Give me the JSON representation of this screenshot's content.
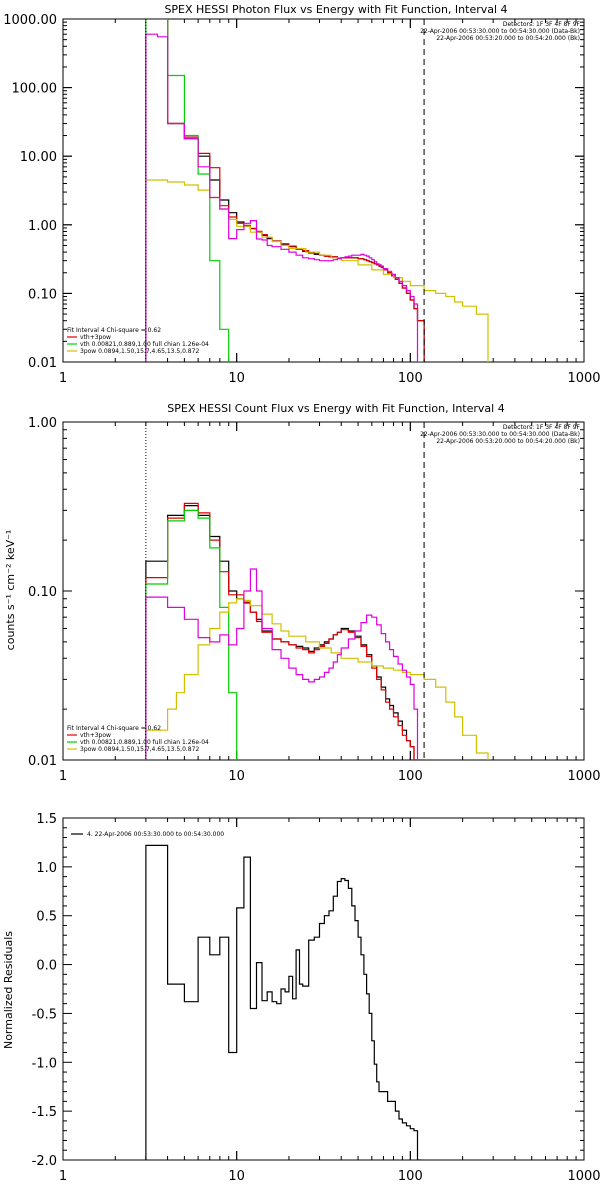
{
  "chart_data": [
    {
      "type": "line",
      "title": "SPEX HESSI Photon Flux vs Energy with Fit Function, Interval 4",
      "ylabel": "",
      "xscale": "log",
      "yscale": "log",
      "xlim": [
        1,
        1000
      ],
      "ylim": [
        0.01,
        1000
      ],
      "x_ticks": [
        "1",
        "10",
        "100",
        "1000"
      ],
      "y_ticks": [
        "0.01",
        "0.10",
        "1.00",
        "10.00",
        "100.00",
        "1000.00"
      ],
      "info_lines": [
        "Detectors: 1F 3F 4F 8F 9F",
        "22-Apr-2006 00:53:30.000 to 00:54:30.000 (Data-Bk)",
        "22-Apr-2006 00:53:20.000 to 00:54:20.000 (Bk)"
      ],
      "legend_lines": [
        {
          "text": "Fit Interval 4   Chi-square = 0.62",
          "color": "#000000"
        },
        {
          "text": "vth+3pow",
          "color": "#e00000"
        },
        {
          "text": "vth 0.00821,0.889,1.00  full chian 1.26e-04",
          "color": "#00d000"
        },
        {
          "text": "3pow 0.0894,1.50,15.7,4.65,13.5,0.872",
          "color": "#d0c000"
        }
      ],
      "vlines": [
        {
          "x": 3.0,
          "style": "dotted",
          "color": "#000000"
        },
        {
          "x": 120,
          "style": "dashed",
          "color": "#000000"
        }
      ],
      "series": [
        {
          "name": "Data-Bk",
          "color": "#000000",
          "edges": [
            3,
            3.5,
            4,
            5,
            6,
            7,
            8,
            9,
            10,
            11,
            12,
            13,
            14,
            15,
            16,
            18,
            20,
            22,
            24,
            26,
            28,
            30,
            32,
            34,
            36,
            38,
            40,
            42,
            44,
            46,
            48,
            50,
            52,
            54,
            56,
            58,
            60,
            62,
            64,
            66,
            68,
            70,
            74,
            78,
            82,
            86,
            90,
            95,
            100,
            105,
            110,
            120
          ],
          "values": [
            1000,
            1000,
            30,
            18,
            10,
            4.5,
            2.3,
            1.5,
            1.1,
            0.95,
            0.88,
            0.78,
            0.7,
            0.63,
            0.58,
            0.52,
            0.48,
            0.44,
            0.41,
            0.39,
            0.37,
            0.36,
            0.35,
            0.34,
            0.34,
            0.33,
            0.33,
            0.33,
            0.33,
            0.33,
            0.33,
            0.32,
            0.32,
            0.31,
            0.3,
            0.29,
            0.28,
            0.27,
            0.26,
            0.25,
            0.24,
            0.22,
            0.2,
            0.18,
            0.16,
            0.14,
            0.12,
            0.1,
            0.08,
            0.06,
            0.04
          ]
        },
        {
          "name": "vth+3pow",
          "color": "#e00000",
          "edges": [
            3,
            3.5,
            4,
            5,
            6,
            7,
            8,
            9,
            10,
            11,
            12,
            13,
            14,
            15,
            16,
            18,
            20,
            22,
            24,
            26,
            28,
            30,
            32,
            34,
            36,
            38,
            40,
            42,
            44,
            46,
            48,
            50,
            52,
            54,
            56,
            58,
            60,
            62,
            64,
            66,
            68,
            70,
            74,
            78,
            82,
            86,
            90,
            95,
            100,
            105,
            110,
            120
          ],
          "values": [
            1000,
            1000,
            30,
            19,
            11,
            6.8,
            1.9,
            1.3,
            1.05,
            0.98,
            0.89,
            0.8,
            0.72,
            0.65,
            0.58,
            0.53,
            0.49,
            0.45,
            0.42,
            0.4,
            0.38,
            0.36,
            0.35,
            0.34,
            0.34,
            0.33,
            0.33,
            0.33,
            0.33,
            0.33,
            0.33,
            0.32,
            0.32,
            0.31,
            0.3,
            0.29,
            0.28,
            0.27,
            0.26,
            0.25,
            0.24,
            0.22,
            0.2,
            0.18,
            0.16,
            0.14,
            0.12,
            0.1,
            0.08,
            0.06,
            0.04
          ]
        },
        {
          "name": "vth",
          "color": "#00d000",
          "edges": [
            3,
            3.5,
            4,
            5,
            6,
            7,
            8,
            9
          ],
          "values": [
            1000,
            1000,
            150,
            20,
            5.5,
            0.3,
            0.03,
            0.005
          ]
        },
        {
          "name": "3pow",
          "color": "#d0c000",
          "edges": [
            3,
            4,
            5,
            6,
            7,
            8,
            9,
            10,
            12,
            14,
            16,
            18,
            20,
            25,
            30,
            35,
            40,
            50,
            60,
            70,
            80,
            90,
            100,
            120,
            140,
            160,
            180,
            200,
            240,
            280
          ],
          "values": [
            4.5,
            4.2,
            3.8,
            3.2,
            2.5,
            1.7,
            1.2,
            0.95,
            0.78,
            0.66,
            0.57,
            0.5,
            0.45,
            0.4,
            0.36,
            0.33,
            0.3,
            0.26,
            0.22,
            0.19,
            0.17,
            0.15,
            0.13,
            0.11,
            0.1,
            0.09,
            0.075,
            0.065,
            0.05
          ]
        },
        {
          "name": "Bk",
          "color": "#e000e0",
          "edges": [
            3,
            3.5,
            4,
            5,
            6,
            7,
            8,
            9,
            10,
            11,
            12,
            13,
            14,
            15,
            16,
            18,
            20,
            22,
            24,
            26,
            28,
            30,
            32,
            34,
            36,
            38,
            40,
            42,
            44,
            46,
            48,
            50,
            52,
            54,
            56,
            58,
            60,
            62,
            64,
            66,
            68,
            70,
            74,
            78,
            82,
            86,
            90,
            95,
            100,
            105,
            110,
            120
          ],
          "values": [
            600,
            550,
            30,
            18,
            7.0,
            2.5,
            1.7,
            0.63,
            0.85,
            1.05,
            1.15,
            0.62,
            0.6,
            0.5,
            0.48,
            0.44,
            0.4,
            0.36,
            0.33,
            0.32,
            0.31,
            0.3,
            0.3,
            0.3,
            0.31,
            0.32,
            0.33,
            0.34,
            0.35,
            0.36,
            0.36,
            0.36,
            0.37,
            0.36,
            0.35,
            0.33,
            0.31,
            0.29,
            0.27,
            0.26,
            0.25,
            0.23,
            0.21,
            0.19,
            0.17,
            0.15,
            0.13,
            0.11,
            0.09,
            0.07,
            0.01
          ]
        }
      ]
    },
    {
      "type": "line",
      "title": "SPEX HESSI Count Flux vs Energy with Fit Function, Interval 4",
      "ylabel": "counts s⁻¹ cm⁻² keV⁻¹",
      "xscale": "log",
      "yscale": "log",
      "xlim": [
        1,
        1000
      ],
      "ylim": [
        0.01,
        1
      ],
      "x_ticks": [
        "1",
        "10",
        "100",
        "1000"
      ],
      "y_ticks": [
        "0.01",
        "0.10",
        "1.00"
      ],
      "info_lines": [
        "Detectors: 1F 3F 4F 8F 9F",
        "22-Apr-2006 00:53:30.000 to 00:54:30.000 (Data-Bk)",
        "22-Apr-2006 00:53:20.000 to 00:54:20.000 (Bk)"
      ],
      "legend_lines": [
        {
          "text": "Fit Interval 4   Chi-square = 0.62",
          "color": "#000000"
        },
        {
          "text": "vth+3pow",
          "color": "#e00000"
        },
        {
          "text": "vth 0.00821,0.889,1.00  full chian 1.26e-04",
          "color": "#00d000"
        },
        {
          "text": "3pow 0.0894,1.50,15.7,4.65,13.5,0.872",
          "color": "#d0c000"
        }
      ],
      "vlines": [
        {
          "x": 3.0,
          "style": "dotted",
          "color": "#000000"
        },
        {
          "x": 120,
          "style": "dashed",
          "color": "#000000"
        }
      ],
      "series": [
        {
          "name": "Data-Bk",
          "color": "#000000",
          "edges": [
            3,
            4,
            5,
            6,
            7,
            8,
            9,
            10,
            11,
            12,
            13,
            14,
            16,
            18,
            20,
            22,
            24,
            26,
            28,
            30,
            32,
            34,
            36,
            38,
            40,
            44,
            48,
            52,
            56,
            60,
            64,
            68,
            72,
            76,
            80,
            85,
            90,
            95,
            100,
            105,
            110,
            120
          ],
          "values": [
            0.15,
            0.28,
            0.32,
            0.28,
            0.21,
            0.15,
            0.1,
            0.09,
            0.085,
            0.075,
            0.068,
            0.058,
            0.052,
            0.05,
            0.048,
            0.047,
            0.046,
            0.044,
            0.046,
            0.048,
            0.05,
            0.052,
            0.055,
            0.057,
            0.06,
            0.058,
            0.054,
            0.048,
            0.042,
            0.036,
            0.031,
            0.027,
            0.023,
            0.021,
            0.019,
            0.017,
            0.015,
            0.013,
            0.012,
            0.01,
            0.01
          ]
        },
        {
          "name": "vth+3pow",
          "color": "#e00000",
          "edges": [
            3,
            4,
            5,
            6,
            7,
            8,
            9,
            10,
            11,
            12,
            13,
            14,
            16,
            18,
            20,
            22,
            24,
            26,
            28,
            30,
            32,
            34,
            36,
            38,
            40,
            44,
            48,
            52,
            56,
            60,
            64,
            68,
            72,
            76,
            80,
            85,
            90,
            95,
            100,
            105,
            110,
            120
          ],
          "values": [
            0.12,
            0.27,
            0.33,
            0.29,
            0.2,
            0.13,
            0.095,
            0.095,
            0.086,
            0.075,
            0.066,
            0.057,
            0.052,
            0.05,
            0.048,
            0.046,
            0.045,
            0.043,
            0.045,
            0.047,
            0.049,
            0.052,
            0.055,
            0.057,
            0.059,
            0.057,
            0.053,
            0.047,
            0.041,
            0.035,
            0.03,
            0.026,
            0.022,
            0.02,
            0.018,
            0.016,
            0.014,
            0.013,
            0.012,
            0.01,
            0.01
          ]
        },
        {
          "name": "vth",
          "color": "#00d000",
          "edges": [
            3,
            4,
            5,
            6,
            7,
            8,
            9,
            10
          ],
          "values": [
            0.11,
            0.26,
            0.3,
            0.27,
            0.18,
            0.08,
            0.025,
            0.008
          ]
        },
        {
          "name": "3pow",
          "color": "#d0c000",
          "edges": [
            3,
            4,
            4.5,
            5,
            6,
            7,
            8,
            9,
            10,
            11,
            12,
            14,
            16,
            18,
            20,
            25,
            30,
            35,
            40,
            50,
            60,
            70,
            80,
            90,
            100,
            120,
            140,
            160,
            180,
            200,
            240,
            280
          ],
          "values": [
            0.015,
            0.02,
            0.025,
            0.032,
            0.048,
            0.06,
            0.075,
            0.085,
            0.09,
            0.088,
            0.082,
            0.073,
            0.064,
            0.058,
            0.054,
            0.05,
            0.046,
            0.043,
            0.04,
            0.038,
            0.036,
            0.035,
            0.034,
            0.033,
            0.032,
            0.03,
            0.027,
            0.022,
            0.018,
            0.014,
            0.011
          ]
        },
        {
          "name": "Bk",
          "color": "#e000e0",
          "edges": [
            3,
            4,
            5,
            6,
            7,
            8,
            9,
            10,
            11,
            12,
            13,
            14,
            16,
            18,
            20,
            22,
            24,
            26,
            28,
            30,
            32,
            34,
            36,
            38,
            40,
            44,
            48,
            52,
            56,
            60,
            64,
            68,
            72,
            76,
            80,
            85,
            90,
            95,
            100,
            105,
            110,
            120
          ],
          "values": [
            0.092,
            0.08,
            0.068,
            0.053,
            0.05,
            0.055,
            0.048,
            0.06,
            0.1,
            0.135,
            0.1,
            0.06,
            0.045,
            0.04,
            0.035,
            0.032,
            0.03,
            0.029,
            0.03,
            0.031,
            0.033,
            0.035,
            0.038,
            0.042,
            0.046,
            0.052,
            0.058,
            0.065,
            0.072,
            0.07,
            0.063,
            0.056,
            0.05,
            0.045,
            0.041,
            0.037,
            0.034,
            0.031,
            0.028,
            0.02,
            0.01
          ]
        }
      ]
    },
    {
      "type": "line",
      "title": "",
      "ylabel": "Normalized Residuals",
      "xscale": "log",
      "yscale": "linear",
      "xlim": [
        1,
        1000
      ],
      "ylim": [
        -2.0,
        1.5
      ],
      "x_ticks": [
        "1",
        "10",
        "100",
        "1000"
      ],
      "y_ticks": [
        "-2.0",
        "-1.5",
        "-1.0",
        "-0.5",
        "0.0",
        "0.5",
        "1.0",
        "1.5"
      ],
      "y_tick_values": [
        -2.0,
        -1.5,
        -1.0,
        -0.5,
        0.0,
        0.5,
        1.0,
        1.5
      ],
      "legend_lines": [
        {
          "text": "4. 22-Apr-2006 00:53:30.000 to 00:54:30.000",
          "color": "#000000"
        }
      ],
      "series": [
        {
          "name": "4. 22-Apr-2006 00:53:30.000 to 00:54:30.000",
          "color": "#000000",
          "edges": [
            3,
            4,
            5,
            6,
            7,
            8,
            9,
            10,
            11,
            12,
            13,
            14,
            15,
            16,
            17,
            18,
            19,
            20,
            21,
            22,
            23,
            24,
            26,
            28,
            30,
            32,
            34,
            36,
            38,
            40,
            42,
            44,
            46,
            48,
            50,
            52,
            54,
            56,
            58,
            60,
            62,
            64,
            66,
            70,
            74,
            78,
            82,
            86,
            90,
            95,
            100,
            105,
            110,
            115
          ],
          "values": [
            1.22,
            -0.2,
            -0.38,
            0.28,
            0.1,
            0.28,
            -0.9,
            0.58,
            1.1,
            -0.45,
            0.02,
            -0.37,
            -0.28,
            -0.38,
            -0.4,
            -0.25,
            -0.28,
            -0.12,
            -0.35,
            0.15,
            -0.2,
            -0.22,
            0.25,
            0.28,
            0.42,
            0.5,
            0.55,
            0.7,
            0.85,
            0.88,
            0.86,
            0.78,
            0.6,
            0.45,
            0.28,
            0.1,
            -0.1,
            -0.3,
            -0.5,
            -0.78,
            -1.02,
            -1.2,
            -1.3,
            -1.3,
            -1.4,
            -1.4,
            -1.5,
            -1.58,
            -1.62,
            -1.65,
            -1.68,
            -1.7,
            -2.0
          ]
        }
      ]
    }
  ]
}
